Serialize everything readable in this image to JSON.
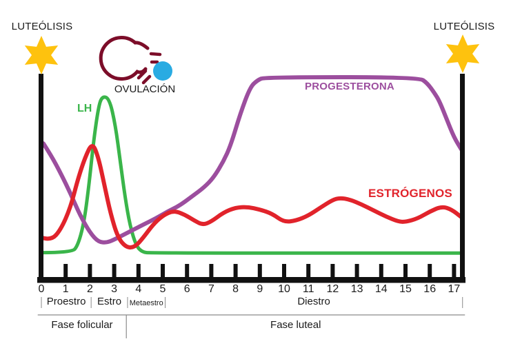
{
  "labels": {
    "luteolisis_left": "LUTEÓLISIS",
    "luteolisis_right": "LUTEÓLISIS",
    "ovulacion": "OVULACIÓN"
  },
  "colors": {
    "lh_green": "#3AB54A",
    "estrogenos_red": "#E1232B",
    "progesterona_purple": "#9C4E9E",
    "follicle_maroon": "#7C0D29",
    "ovum_blue": "#29ABE2",
    "star_yellow": "#FEC20E",
    "axis_black": "#111111",
    "divider_gray": "#8a8a8a",
    "text_black": "#1a1a1a"
  },
  "chart_data": {
    "type": "line",
    "title": "",
    "xlabel": "",
    "ylabel": "",
    "y_axis": {
      "visible": false,
      "scale_note": "relative hormone level 0-100 (progesterone plateau = 100)",
      "ylim": [
        0,
        105
      ]
    },
    "x_axis": {
      "range": [
        0,
        17.35
      ],
      "tick_labels": [
        "0",
        "1",
        "2",
        "3",
        "4",
        "5",
        "6",
        "7",
        "8",
        "9",
        "10",
        "11",
        "12",
        "13",
        "14",
        "15",
        "16",
        "17"
      ]
    },
    "grid": false,
    "legend_position": "labels-on-curves",
    "series": [
      {
        "name": "LH",
        "color": "#3AB54A",
        "points": [
          [
            0,
            12.5
          ],
          [
            1.25,
            12.5
          ],
          [
            1.5,
            16
          ],
          [
            1.75,
            27
          ],
          [
            1.95,
            45
          ],
          [
            2.15,
            68
          ],
          [
            2.35,
            85
          ],
          [
            2.5,
            90.5
          ],
          [
            2.8,
            89.5
          ],
          [
            3.05,
            76
          ],
          [
            3.25,
            58
          ],
          [
            3.45,
            40
          ],
          [
            3.65,
            26
          ],
          [
            3.9,
            16
          ],
          [
            4.15,
            12.8
          ],
          [
            4.5,
            12.3
          ],
          [
            17.3,
            12.3
          ]
        ]
      },
      {
        "name": "PROGESTERONA",
        "color": "#9C4E9E",
        "points": [
          [
            0.08,
            67
          ],
          [
            0.4,
            61
          ],
          [
            0.8,
            52
          ],
          [
            1.2,
            42
          ],
          [
            1.6,
            31
          ],
          [
            2.0,
            22.5
          ],
          [
            2.35,
            17.8
          ],
          [
            2.7,
            17.5
          ],
          [
            3.0,
            19
          ],
          [
            3.4,
            21.5
          ],
          [
            3.8,
            24
          ],
          [
            4.2,
            26.5
          ],
          [
            4.7,
            29.5
          ],
          [
            5.2,
            33
          ],
          [
            5.7,
            36
          ],
          [
            6.2,
            40.5
          ],
          [
            6.7,
            45
          ],
          [
            7.1,
            50
          ],
          [
            7.5,
            58
          ],
          [
            7.8,
            66
          ],
          [
            8.2,
            82
          ],
          [
            8.6,
            95
          ],
          [
            8.9,
            98.5
          ],
          [
            9.2,
            100
          ],
          [
            15.55,
            100
          ],
          [
            15.9,
            97
          ],
          [
            16.2,
            92
          ],
          [
            16.4,
            88
          ],
          [
            16.7,
            79
          ],
          [
            17.0,
            70
          ],
          [
            17.3,
            64
          ]
        ]
      },
      {
        "name": "ESTRÓGENOS",
        "color": "#E1232B",
        "points": [
          [
            0,
            20
          ],
          [
            0.4,
            18.5
          ],
          [
            0.8,
            24
          ],
          [
            1.2,
            35
          ],
          [
            1.5,
            49
          ],
          [
            1.8,
            60
          ],
          [
            2.1,
            67.5
          ],
          [
            2.35,
            60
          ],
          [
            2.6,
            46
          ],
          [
            2.85,
            32
          ],
          [
            3.15,
            20
          ],
          [
            3.5,
            15
          ],
          [
            3.85,
            15.2
          ],
          [
            4.2,
            20
          ],
          [
            4.6,
            26.5
          ],
          [
            5.0,
            31
          ],
          [
            5.45,
            33.5
          ],
          [
            5.9,
            31.5
          ],
          [
            6.3,
            28.5
          ],
          [
            6.65,
            26.3
          ],
          [
            7.0,
            28
          ],
          [
            7.5,
            32.5
          ],
          [
            8.0,
            35
          ],
          [
            8.5,
            35.3
          ],
          [
            9.0,
            34
          ],
          [
            9.5,
            32
          ],
          [
            10.0,
            27.7
          ],
          [
            10.5,
            28.5
          ],
          [
            11.0,
            31
          ],
          [
            11.5,
            35
          ],
          [
            12.0,
            38.8
          ],
          [
            12.3,
            39.8
          ],
          [
            12.7,
            39
          ],
          [
            13.2,
            36.5
          ],
          [
            13.7,
            33.5
          ],
          [
            14.2,
            30.5
          ],
          [
            14.7,
            28
          ],
          [
            15.0,
            27.8
          ],
          [
            15.5,
            29.5
          ],
          [
            16.0,
            33
          ],
          [
            16.5,
            35.6
          ],
          [
            16.9,
            34
          ],
          [
            17.27,
            30.5
          ]
        ]
      }
    ],
    "phases": [
      {
        "label": "Proestro",
        "start_day": 0,
        "end_day": 2.05,
        "small_font": false
      },
      {
        "label": "Estro",
        "start_day": 2.05,
        "end_day": 3.55,
        "small_font": false
      },
      {
        "label": "Metaestro",
        "start_day": 3.55,
        "end_day": 5.1,
        "small_font": true
      },
      {
        "label": "Diestro",
        "start_day": 5.1,
        "end_day": 17.35,
        "small_font": false
      }
    ],
    "cycle_fases": [
      {
        "label": "Fase folicular",
        "start_day": -0.15,
        "end_day": 3.5
      },
      {
        "label": "Fase luteal",
        "start_day": 3.5,
        "end_day": 17.45
      }
    ],
    "annotations": [
      {
        "text": "LUTEÓLISIS",
        "symbol": "six-pointed-star",
        "x_day": 0
      },
      {
        "text": "LUTEÓLISIS",
        "symbol": "six-pointed-star",
        "x_day": 17.3
      },
      {
        "text": "OVULACIÓN",
        "symbol": "follicle-releasing-ovum",
        "x_day": 3.2
      }
    ]
  }
}
